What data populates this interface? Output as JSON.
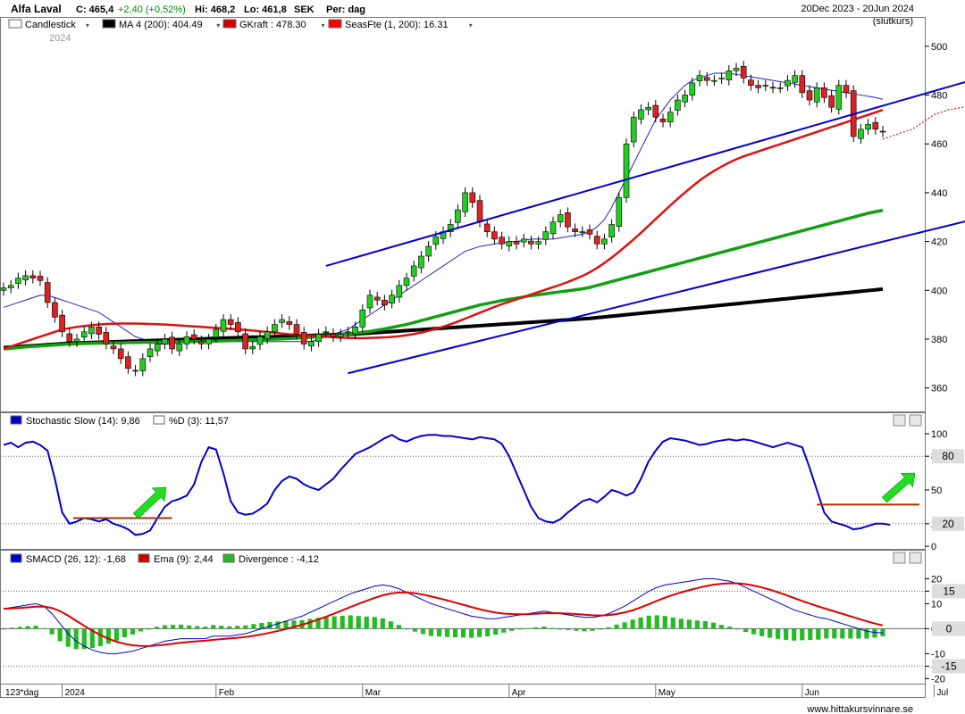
{
  "header": {
    "stock_name": "Alfa Laval",
    "close": "C: 465,4",
    "change": "+2,40 (+0,52%)",
    "high": "Hi: 468,2",
    "low": "Lo: 461,8",
    "currency": "SEK",
    "period": "Per: dag",
    "date_range": "20Dec 2023 - 20Jun 2024",
    "price_type": "(slutkurs)"
  },
  "legend_main": [
    {
      "label": "Candlestick",
      "color": "#ffffff"
    },
    {
      "label": "MA 4 (200): 404.49",
      "color": "#000000"
    },
    {
      "label": "GKraft : 478.30",
      "color": "#d00000"
    },
    {
      "label": "SeasFte (1, 200): 16.31",
      "color": "#ff0000"
    }
  ],
  "year_label": "2024",
  "legend_stoch": [
    {
      "label": "Stochastic Slow (14): 9,86",
      "color": "#0000cc"
    },
    {
      "label": "%D (3): 11,57",
      "color": "#ffffff"
    }
  ],
  "legend_macd": [
    {
      "label": "SMACD (26, 12): -1,68",
      "color": "#0000cc"
    },
    {
      "label": "Ema (9): 2,44",
      "color": "#d00000"
    },
    {
      "label": "Divergence : -4,12",
      "color": "#22bb22"
    }
  ],
  "footer": {
    "range_label": "123*dag",
    "watermark": "www.hittakursvinnare.se"
  },
  "colors": {
    "up": "#22cc22",
    "down": "#dd2222",
    "ma200": "#000000",
    "ma_green": "#11a011",
    "ma_red": "#dd1111",
    "channel": "#0000cc",
    "stoch": "#0000cc",
    "macd": "#0000cc",
    "ema": "#dd0000",
    "div": "#22bb22",
    "hline": "#aa3300",
    "arrow": "#22dd22"
  },
  "chart_data": [
    {
      "type": "candlestick",
      "name": "price",
      "ylim": [
        350,
        508
      ],
      "y_ticks": [
        360,
        380,
        400,
        420,
        440,
        460,
        480,
        500
      ],
      "x_labels": [
        {
          "label": "2024",
          "i": 8
        },
        {
          "label": "Feb",
          "i": 29
        },
        {
          "label": "Mar",
          "i": 49
        },
        {
          "label": "Apr",
          "i": 69
        },
        {
          "label": "May",
          "i": 89
        },
        {
          "label": "Jun",
          "i": 109
        },
        {
          "label": "Jul",
          "i": 127
        }
      ],
      "closes": [
        401,
        402,
        405,
        406,
        405,
        404,
        395,
        389,
        383,
        379,
        380,
        383,
        385,
        382,
        378,
        376,
        372,
        368,
        367,
        372,
        376,
        378,
        380,
        376,
        378,
        381,
        380,
        378,
        380,
        384,
        388,
        386,
        383,
        376,
        377,
        381,
        383,
        386,
        388,
        386,
        382,
        378,
        379,
        382,
        383,
        381,
        382,
        383,
        385,
        392,
        398,
        396,
        394,
        398,
        402,
        405,
        410,
        414,
        418,
        422,
        424,
        427,
        433,
        440,
        436,
        428,
        424,
        421,
        419,
        420,
        419,
        421,
        419,
        420,
        424,
        428,
        431,
        426,
        424,
        424,
        423,
        419,
        421,
        427,
        438,
        460,
        471,
        474,
        475,
        471,
        469,
        473,
        478,
        480,
        485,
        488,
        486,
        486,
        487,
        490,
        491,
        487,
        484,
        483,
        484,
        483,
        483,
        486,
        488,
        481,
        478,
        483,
        479,
        475,
        484,
        481,
        463,
        466,
        468,
        466,
        465
      ],
      "ma200": [
        376.5,
        376.7,
        376.9,
        377.1,
        377.3,
        377.5,
        377.7,
        377.9,
        378.1,
        378.3,
        378.4,
        378.5,
        378.6,
        378.7,
        378.8,
        378.9,
        379,
        379.1,
        379.2,
        379.3,
        379.4,
        379.5,
        379.6,
        379.7,
        379.8,
        379.9,
        380,
        380.1,
        380.2,
        380.3,
        380.4,
        380.5,
        380.6,
        380.7,
        380.8,
        380.8,
        380.9,
        381,
        381.1,
        381.2,
        381.3,
        381.4,
        381.5,
        381.6,
        381.7,
        381.8,
        381.9,
        382,
        382.1,
        382.3,
        382.5,
        382.7,
        382.9,
        383.1,
        383.3,
        383.5,
        383.7,
        383.9,
        384.1,
        384.3,
        384.5,
        384.7,
        384.9,
        385.1,
        385.3,
        385.5,
        385.7,
        385.9,
        386.1,
        386.3,
        386.5,
        386.7,
        386.9,
        387.1,
        387.3,
        387.5,
        387.7,
        387.9,
        388.1,
        388.3,
        388.5,
        388.8,
        389.1,
        389.4,
        389.7,
        390,
        390.3,
        390.6,
        390.9,
        391.2,
        391.5,
        391.8,
        392.1,
        392.4,
        392.7,
        393,
        393.3,
        393.6,
        393.9,
        394.2,
        394.5,
        394.8,
        395.1,
        395.4,
        395.7,
        396,
        396.3,
        396.6,
        396.9,
        397.2,
        397.5,
        397.8,
        398.1,
        398.4,
        398.7,
        399,
        399.3,
        399.6,
        399.9,
        400.2,
        400.5
      ],
      "ma_green": [
        376,
        376.2,
        376.5,
        376.8,
        377,
        377.2,
        377.4,
        377.6,
        377.8,
        378,
        378.1,
        378.2,
        378.3,
        378.4,
        378.4,
        378.5,
        378.5,
        378.6,
        378.6,
        378.7,
        378.7,
        378.8,
        378.8,
        378.9,
        378.9,
        379,
        379,
        379.1,
        379.1,
        379.2,
        379.3,
        379.4,
        379.5,
        379.6,
        379.7,
        379.8,
        379.9,
        380,
        380.1,
        380.2,
        380.4,
        380.6,
        380.8,
        381,
        381.2,
        381.5,
        381.8,
        382.1,
        382.4,
        382.8,
        383.2,
        383.7,
        384.2,
        384.8,
        385.4,
        386,
        386.8,
        387.6,
        388.4,
        389.2,
        390,
        390.8,
        391.6,
        392.4,
        393.2,
        394,
        394.6,
        395.2,
        395.8,
        396.3,
        396.8,
        397.3,
        397.8,
        398.2,
        398.6,
        399,
        399.4,
        399.8,
        400.2,
        400.6,
        401.2,
        402,
        402.8,
        403.6,
        404.4,
        405.2,
        406,
        406.8,
        407.6,
        408.4,
        409.2,
        410,
        410.8,
        411.6,
        412.4,
        413.2,
        414,
        414.8,
        415.6,
        416.4,
        417.2,
        418,
        418.8,
        419.6,
        420.4,
        421.2,
        422,
        422.8,
        423.6,
        424.4,
        425.2,
        426,
        426.8,
        427.6,
        428.4,
        429.2,
        430,
        430.8,
        431.6,
        432.2,
        432.8
      ],
      "ma_red": [
        376,
        377,
        378,
        379,
        380,
        381,
        382,
        383,
        384,
        384.5,
        385,
        385.4,
        385.7,
        386,
        386.2,
        386.3,
        386.4,
        386.4,
        386.4,
        386.3,
        386.2,
        386.1,
        386,
        385.8,
        385.6,
        385.4,
        385.2,
        385,
        384.8,
        384.6,
        384.4,
        384.2,
        384,
        383.8,
        383.5,
        383.2,
        382.9,
        382.6,
        382.3,
        382,
        381.8,
        381.6,
        381.4,
        381.2,
        381,
        380.8,
        380.6,
        380.5,
        380.4,
        380.4,
        380.5,
        380.6,
        380.7,
        380.9,
        381.2,
        381.6,
        382.1,
        382.7,
        383.4,
        384.2,
        385.1,
        386.1,
        387.2,
        388.4,
        389.6,
        390.8,
        392,
        393.2,
        394.3,
        395.3,
        396.3,
        397.3,
        398.3,
        399.3,
        400.3,
        401.3,
        402.3,
        403.4,
        404.6,
        405.9,
        407.4,
        409.2,
        411.2,
        413.4,
        415.8,
        418.3,
        420.9,
        423.6,
        426.4,
        429.2,
        432,
        434.8,
        437.5,
        440.1,
        442.6,
        445,
        447.1,
        449,
        450.7,
        452.3,
        453.7,
        454.9,
        455.9,
        456.9,
        457.9,
        458.9,
        459.9,
        460.9,
        461.9,
        462.9,
        463.9,
        464.9,
        465.9,
        466.9,
        467.9,
        468.9,
        469.9,
        470.9,
        471.9,
        472.9,
        473.9
      ],
      "ma_blue": [
        393,
        394,
        395,
        396,
        397,
        398,
        398,
        397,
        396,
        395,
        394,
        393,
        392,
        391,
        389,
        387,
        385,
        383,
        381,
        380,
        379,
        378,
        378,
        378,
        378.5,
        379,
        379,
        379,
        379,
        379,
        379,
        379,
        379,
        379,
        379,
        379,
        379,
        379,
        379,
        379,
        379,
        379,
        379,
        380,
        381,
        382,
        383,
        384,
        386,
        388,
        390,
        392,
        394,
        396,
        398,
        400,
        402,
        404,
        406,
        408,
        410,
        412,
        414,
        416,
        417,
        418,
        418.5,
        419,
        419.5,
        420,
        420,
        420.5,
        421,
        421,
        421,
        421,
        421.5,
        422,
        422.5,
        423,
        424,
        426,
        429,
        434,
        440,
        446,
        452,
        458,
        464,
        470,
        474,
        478,
        481,
        484,
        486,
        487,
        488,
        489,
        489,
        489,
        488.5,
        488,
        487.5,
        487,
        486.5,
        486,
        485.5,
        485,
        484.5,
        484,
        483.5,
        483,
        482.5,
        482,
        481.5,
        481,
        480.5,
        480,
        479.5,
        479,
        478.3
      ],
      "seas_fte": [
        462,
        463,
        464,
        465,
        466,
        468,
        470,
        472,
        473,
        474,
        474.5,
        475,
        475.5,
        476,
        476.5,
        477,
        477.5,
        478,
        478.3
      ],
      "channel_upper": [
        [
          44,
          410
        ],
        [
          154,
          505
        ]
      ],
      "channel_lower": [
        [
          47,
          366
        ],
        [
          181,
          465
        ]
      ]
    },
    {
      "type": "line",
      "name": "stochastic",
      "ylim": [
        0,
        100
      ],
      "y_ticks": [
        0,
        20,
        50,
        80,
        100
      ],
      "hlines": [
        20,
        80
      ],
      "values": [
        90,
        92,
        88,
        92,
        93,
        90,
        85,
        60,
        30,
        20,
        22,
        25,
        24,
        22,
        24,
        20,
        18,
        15,
        10,
        11,
        14,
        25,
        35,
        40,
        42,
        45,
        55,
        75,
        88,
        86,
        65,
        40,
        30,
        28,
        29,
        33,
        38,
        50,
        58,
        62,
        60,
        55,
        52,
        50,
        55,
        60,
        68,
        75,
        82,
        85,
        88,
        92,
        96,
        99,
        95,
        93,
        96,
        98,
        99,
        99,
        98,
        98,
        97,
        96,
        95,
        97,
        96,
        95,
        91,
        80,
        65,
        50,
        35,
        25,
        22,
        21,
        24,
        30,
        35,
        40,
        42,
        39,
        44,
        50,
        48,
        45,
        48,
        60,
        75,
        85,
        93,
        96,
        95,
        94,
        92,
        90,
        91,
        93,
        94,
        95,
        94,
        95,
        94,
        92,
        90,
        88,
        90,
        92,
        90,
        88,
        70,
        50,
        30,
        22,
        20,
        18,
        15,
        16,
        18,
        20,
        20,
        19
      ],
      "d_values": [
        null
      ],
      "dropped_index_comment": ""
    },
    {
      "type": "line",
      "name": "smacd",
      "ylim": [
        -22,
        23
      ],
      "y_ticks": [
        -20,
        -15,
        -10,
        0,
        10,
        15,
        20
      ],
      "hlines": [
        -15,
        15
      ],
      "smacd": [
        8,
        8.5,
        9,
        9.5,
        10,
        9,
        6,
        2,
        -2,
        -5,
        -7,
        -8.5,
        -9.5,
        -10,
        -10,
        -9.5,
        -9,
        -8,
        -7,
        -6,
        -5,
        -4.5,
        -4,
        -4,
        -4,
        -4,
        -3,
        -3,
        -3,
        -2.5,
        -2,
        -1,
        0,
        1,
        2,
        3,
        4,
        5,
        6.5,
        8,
        9.5,
        11,
        12.5,
        14,
        15,
        16,
        17,
        17.5,
        17,
        16,
        14.5,
        13,
        11.5,
        10,
        9,
        8,
        7,
        6,
        5,
        4.5,
        4,
        4,
        4.5,
        5,
        5.5,
        6,
        6.5,
        7,
        6.5,
        6,
        5.5,
        5,
        4.5,
        4.5,
        5,
        6,
        7.5,
        9,
        11,
        13,
        15,
        16.5,
        17.5,
        18,
        18.5,
        19,
        19.5,
        20,
        20,
        19.5,
        19,
        18,
        16.5,
        15,
        13.5,
        12,
        10.5,
        9,
        7.5,
        6.5,
        5.5,
        4.5,
        4,
        3,
        2,
        1,
        0,
        -1,
        -1.5,
        -1.68
      ],
      "ema": [],
      "divergence": []
    }
  ]
}
